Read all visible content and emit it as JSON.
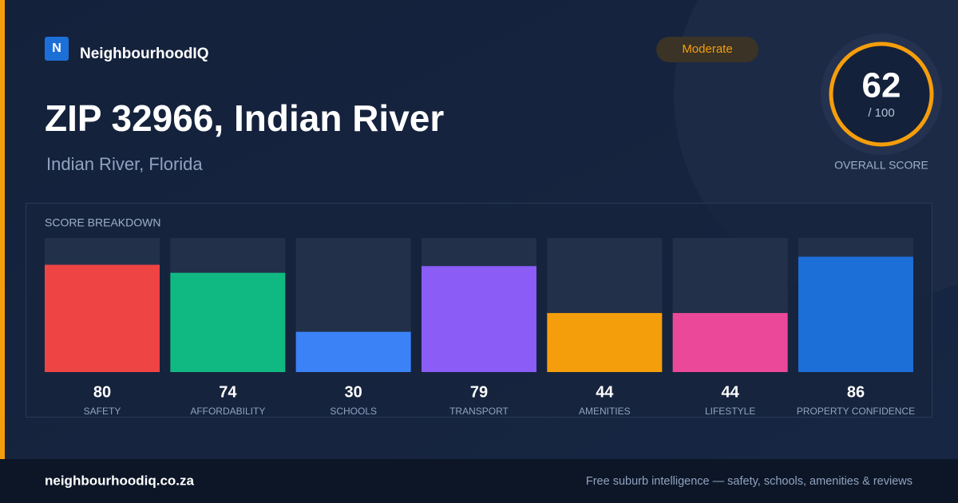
{
  "brand": {
    "logo_letter": "N",
    "name": "NeighbourhoodIQ"
  },
  "badge": "Moderate",
  "title": "ZIP 32966, Indian River",
  "subtitle": "Indian River, Florida",
  "overall": {
    "score": 62,
    "max_label": "/ 100",
    "label": "OVERALL SCORE"
  },
  "chart_data": {
    "type": "bar",
    "title": "SCORE BREAKDOWN",
    "categories": [
      "SAFETY",
      "AFFORDABILITY",
      "SCHOOLS",
      "TRANSPORT",
      "AMENITIES",
      "LIFESTYLE",
      "PROPERTY CONFIDENCE"
    ],
    "values": [
      80,
      74,
      30,
      79,
      44,
      44,
      86
    ],
    "colors": [
      "#ef4444",
      "#10b981",
      "#3b82f6",
      "#8b5cf6",
      "#f59e0b",
      "#ec4899",
      "#1d6fd8"
    ],
    "ylim": [
      0,
      100
    ]
  },
  "footer": {
    "site": "neighbourhoodiq.co.za",
    "tagline": "Free suburb intelligence — safety, schools, amenities & reviews"
  }
}
